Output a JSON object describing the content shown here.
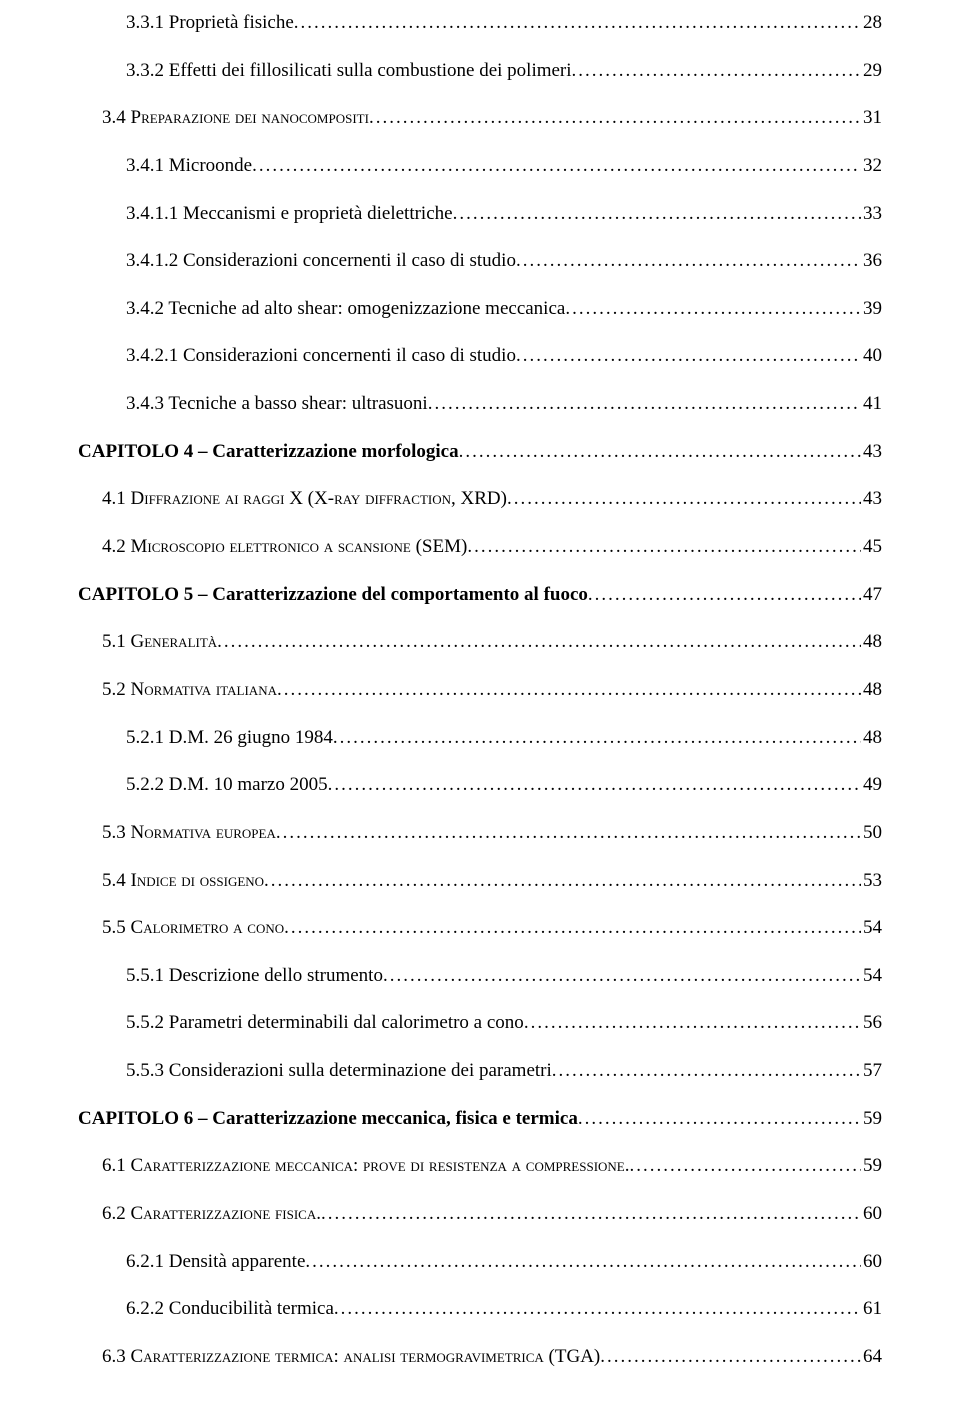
{
  "toc": [
    {
      "indent": 2,
      "bold": false,
      "label_html": "3.3.1 Proprietà fisiche",
      "page": "28"
    },
    {
      "indent": 2,
      "bold": false,
      "label_html": "3.3.2 Effetti dei fillosilicati sulla combustione dei polimeri",
      "page": "29"
    },
    {
      "indent": 1,
      "bold": false,
      "label_html": "3.4 P<span class='sc'>reparazione dei nanocompositi</span>",
      "page": "31"
    },
    {
      "indent": 2,
      "bold": false,
      "label_html": "3.4.1 Microonde",
      "page": "32"
    },
    {
      "indent": 2,
      "bold": false,
      "label_html": "3.4.1.1 Meccanismi e proprietà dielettriche",
      "page": "33"
    },
    {
      "indent": 2,
      "bold": false,
      "label_html": "3.4.1.2 Considerazioni concernenti il caso di studio",
      "page": "36"
    },
    {
      "indent": 2,
      "bold": false,
      "label_html": "3.4.2 Tecniche ad alto shear: omogenizzazione meccanica",
      "page": "39"
    },
    {
      "indent": 2,
      "bold": false,
      "label_html": "3.4.2.1 Considerazioni concernenti il caso di studio",
      "page": "40"
    },
    {
      "indent": 2,
      "bold": false,
      "label_html": "3.4.3 Tecniche a basso shear: ultrasuoni",
      "page": "41"
    },
    {
      "indent": 0,
      "bold": true,
      "label_html": "CAPITOLO 4 – Caratterizzazione morfologica",
      "page": "43"
    },
    {
      "indent": 1,
      "bold": false,
      "label_html": "4.1 D<span class='sc'>iffrazione ai raggi</span> X (X-<span class='sc'>ray diffraction</span>, XRD)",
      "page": "43"
    },
    {
      "indent": 1,
      "bold": false,
      "label_html": "4.2 M<span class='sc'>icroscopio elettronico a scansione</span> (SEM)",
      "page": "45"
    },
    {
      "indent": 0,
      "bold": true,
      "label_html": "CAPITOLO 5 – Caratterizzazione del comportamento al fuoco",
      "page": "47"
    },
    {
      "indent": 1,
      "bold": false,
      "label_html": "5.1 G<span class='sc'>eneralità</span>",
      "page": "48"
    },
    {
      "indent": 1,
      "bold": false,
      "label_html": "5.2 N<span class='sc'>ormativa italiana</span>",
      "page": "48"
    },
    {
      "indent": 2,
      "bold": false,
      "label_html": "5.2.1 D.M. 26 giugno 1984",
      "page": "48"
    },
    {
      "indent": 2,
      "bold": false,
      "label_html": "5.2.2 D.M. 10 marzo 2005",
      "page": "49"
    },
    {
      "indent": 1,
      "bold": false,
      "label_html": "5.3 N<span class='sc'>ormativa europea</span>",
      "page": "50"
    },
    {
      "indent": 1,
      "bold": false,
      "label_html": "5.4 I<span class='sc'>ndice di ossigeno</span>",
      "page": "53"
    },
    {
      "indent": 1,
      "bold": false,
      "label_html": "5.5 C<span class='sc'>alorimetro a cono</span>",
      "page": "54"
    },
    {
      "indent": 2,
      "bold": false,
      "label_html": "5.5.1 Descrizione dello strumento",
      "page": "54"
    },
    {
      "indent": 2,
      "bold": false,
      "label_html": "5.5.2 Parametri determinabili dal calorimetro a cono",
      "page": "56"
    },
    {
      "indent": 2,
      "bold": false,
      "label_html": "5.5.3 Considerazioni sulla determinazione dei parametri",
      "page": "57"
    },
    {
      "indent": 0,
      "bold": true,
      "label_html": "CAPITOLO 6 – Caratterizzazione meccanica, fisica e termica",
      "page": "59"
    },
    {
      "indent": 1,
      "bold": false,
      "label_html": "6.1 C<span class='sc'>aratterizzazione meccanica: prove di resistenza a compressione.</span>",
      "page": "59"
    },
    {
      "indent": 1,
      "bold": false,
      "label_html": "6.2 C<span class='sc'>aratterizzazione fisica.</span>",
      "page": "60"
    },
    {
      "indent": 2,
      "bold": false,
      "label_html": "6.2.1 Densità apparente",
      "page": "60"
    },
    {
      "indent": 2,
      "bold": false,
      "label_html": "6.2.2 Conducibilità termica",
      "page": "61"
    },
    {
      "indent": 1,
      "bold": false,
      "label_html": "6.3 C<span class='sc'>aratterizzazione termica: analisi termogravimetrica</span> (TGA)",
      "page": "64"
    }
  ]
}
